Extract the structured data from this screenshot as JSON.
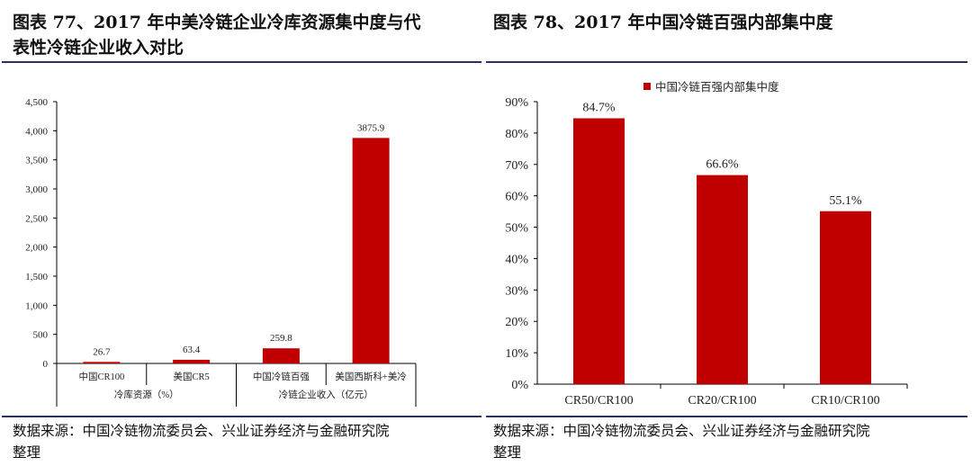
{
  "left_panel": {
    "title_line1": "图表 77、2017 年中美冷链企业冷库资源集中度与代",
    "title_line2": "表性冷链企业收入对比",
    "source_line1": "数据来源：中国冷链物流委员会、兴业证券经济与金融研究院",
    "source_line2": "整理"
  },
  "right_panel": {
    "title_line1": "图表 78、2017 年中国冷链百强内部集中度",
    "source_line1": "数据来源：中国冷链物流委员会、兴业证券经济与金融研究院",
    "source_line2": "整理"
  },
  "colors": {
    "bar": "#c00000",
    "rule": "#2b2f5e",
    "axis": "#000000"
  },
  "chart_data": [
    {
      "type": "bar",
      "title": "2017年中美冷链企业冷库资源集中度与代表性冷链企业收入对比",
      "categories": [
        "中国CR100",
        "美国CR5",
        "中国冷链百强",
        "美国西斯科+美冷"
      ],
      "groups": [
        {
          "label": "冷库资源（%）",
          "categories": [
            "中国CR100",
            "美国CR5"
          ]
        },
        {
          "label": "冷链企业收入（亿元）",
          "categories": [
            "中国冷链百强",
            "美国西斯科+美冷"
          ]
        }
      ],
      "values": [
        26.7,
        63.4,
        259.8,
        3875.9
      ],
      "data_labels": [
        "26.7",
        "63.4",
        "259.8",
        "3875.9"
      ],
      "yticks": [
        "0",
        "500",
        "1,000",
        "1,500",
        "2,000",
        "2,500",
        "3,000",
        "3,500",
        "4,000",
        "4,500"
      ],
      "ylim": [
        0,
        4500
      ],
      "grid": false,
      "legend": null
    },
    {
      "type": "bar",
      "title": "2017年中国冷链百强内部集中度",
      "categories": [
        "CR50/CR100",
        "CR20/CR100",
        "CR10/CR100"
      ],
      "series": [
        {
          "name": "中国冷链百强内部集中度",
          "values": [
            84.7,
            66.6,
            55.1
          ]
        }
      ],
      "data_labels": [
        "84.7%",
        "66.6%",
        "55.1%"
      ],
      "yticks": [
        "0%",
        "10%",
        "20%",
        "30%",
        "40%",
        "50%",
        "60%",
        "70%",
        "80%",
        "90%"
      ],
      "ylim": [
        0,
        90
      ],
      "ylabel_unit": "%",
      "grid": false,
      "legend": {
        "position": "top-right",
        "label": "中国冷链百强内部集中度"
      }
    }
  ]
}
